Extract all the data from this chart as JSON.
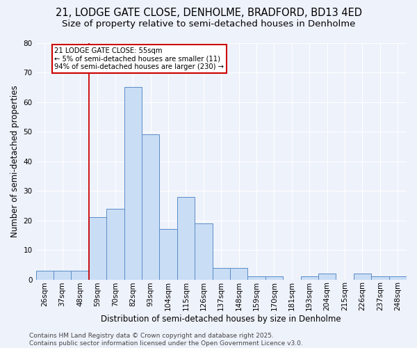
{
  "title1": "21, LODGE GATE CLOSE, DENHOLME, BRADFORD, BD13 4ED",
  "title2": "Size of property relative to semi-detached houses in Denholme",
  "xlabel": "Distribution of semi-detached houses by size in Denholme",
  "ylabel": "Number of semi-detached properties",
  "categories": [
    "26sqm",
    "37sqm",
    "48sqm",
    "59sqm",
    "70sqm",
    "82sqm",
    "93sqm",
    "104sqm",
    "115sqm",
    "126sqm",
    "137sqm",
    "148sqm",
    "159sqm",
    "170sqm",
    "181sqm",
    "193sqm",
    "204sqm",
    "215sqm",
    "226sqm",
    "237sqm",
    "248sqm"
  ],
  "values": [
    3,
    3,
    3,
    21,
    24,
    65,
    49,
    17,
    28,
    19,
    4,
    4,
    1,
    1,
    0,
    1,
    2,
    0,
    2,
    1,
    1
  ],
  "bar_color": "#c9ddf5",
  "bar_edge_color": "#5b8dc8",
  "vline_x_index": 3,
  "vline_color": "#cc0000",
  "annotation_title": "21 LODGE GATE CLOSE: 55sqm",
  "annotation_line1": "← 5% of semi-detached houses are smaller (11)",
  "annotation_line2": "94% of semi-detached houses are larger (230) →",
  "annotation_box_color": "#cc0000",
  "ylim": [
    0,
    80
  ],
  "yticks": [
    0,
    10,
    20,
    30,
    40,
    50,
    60,
    70,
    80
  ],
  "footer": "Contains HM Land Registry data © Crown copyright and database right 2025.\nContains public sector information licensed under the Open Government Licence v3.0.",
  "background_color": "#eef2fb",
  "grid_color": "#ffffff",
  "title_fontsize": 10.5,
  "subtitle_fontsize": 9.5,
  "axis_fontsize": 8.5,
  "tick_fontsize": 7.5,
  "footer_fontsize": 6.5
}
